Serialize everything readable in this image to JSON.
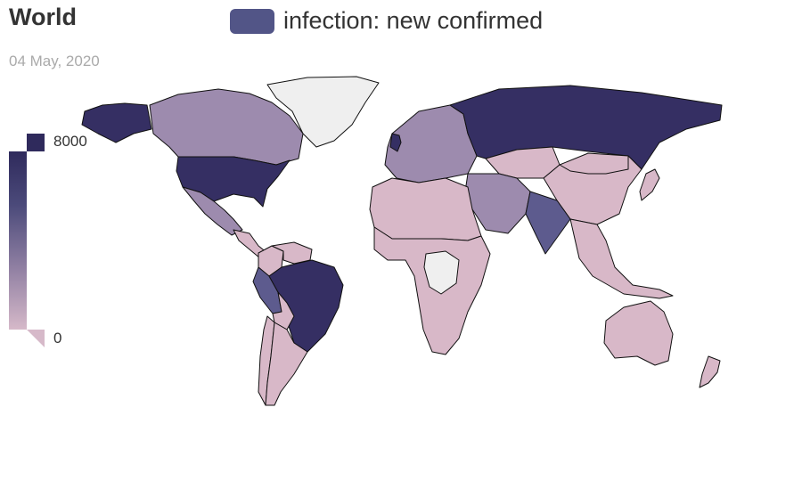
{
  "title": "World",
  "subtitle": "04 May, 2020",
  "legend": {
    "label": "infection: new confirmed",
    "color": "#525587"
  },
  "visual_map": {
    "max_label": "8000",
    "min_label": "0",
    "max_color": "#2f2a5c",
    "min_color": "#d6b9c9"
  },
  "colors": {
    "very_high": "#352f63",
    "high": "#5d5b8e",
    "mid": "#9d8bae",
    "low": "#d8b8c8",
    "no_data": "#efefef",
    "border": "#111111"
  },
  "regions": [
    {
      "name": "Greenland",
      "level": "no_data"
    },
    {
      "name": "Canada",
      "level": "mid"
    },
    {
      "name": "Alaska",
      "level": "very_high"
    },
    {
      "name": "United States",
      "level": "very_high"
    },
    {
      "name": "Mexico",
      "level": "mid"
    },
    {
      "name": "Central America",
      "level": "low"
    },
    {
      "name": "Colombia",
      "level": "low"
    },
    {
      "name": "Venezuela",
      "level": "low"
    },
    {
      "name": "Peru",
      "level": "high"
    },
    {
      "name": "Brazil",
      "level": "very_high"
    },
    {
      "name": "Bolivia",
      "level": "low"
    },
    {
      "name": "Chile",
      "level": "low"
    },
    {
      "name": "Argentina",
      "level": "low"
    },
    {
      "name": "Europe",
      "level": "mid"
    },
    {
      "name": "United Kingdom",
      "level": "very_high"
    },
    {
      "name": "Russia",
      "level": "very_high"
    },
    {
      "name": "Kazakhstan",
      "level": "low"
    },
    {
      "name": "China",
      "level": "low"
    },
    {
      "name": "Mongolia",
      "level": "low"
    },
    {
      "name": "Middle East",
      "level": "mid"
    },
    {
      "name": "India",
      "level": "high"
    },
    {
      "name": "Southeast Asia",
      "level": "low"
    },
    {
      "name": "Japan",
      "level": "low"
    },
    {
      "name": "North Africa",
      "level": "low"
    },
    {
      "name": "Sub-Saharan Africa",
      "level": "low"
    },
    {
      "name": "Central Africa",
      "level": "no_data"
    },
    {
      "name": "Australia",
      "level": "low"
    },
    {
      "name": "New Zealand",
      "level": "low"
    }
  ]
}
